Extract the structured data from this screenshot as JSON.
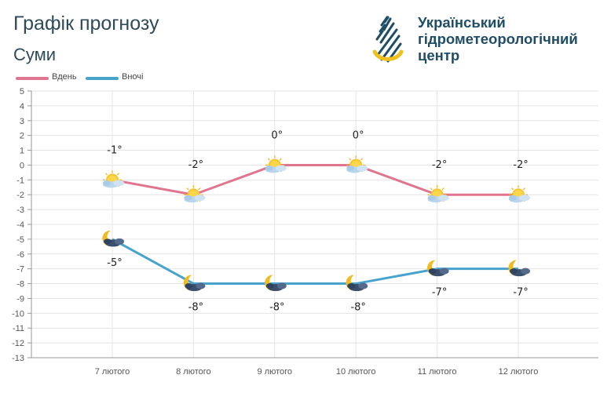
{
  "title": "Графік прогнозу",
  "city": "Суми",
  "organization": {
    "lines": [
      "Український",
      "гідрометеорологічний",
      "центр"
    ],
    "logo_icon": "droplet-logo-icon"
  },
  "legend": [
    {
      "name": "Вдень",
      "color": "#e07590"
    },
    {
      "name": "Вночі",
      "color": "#47a3cc"
    }
  ],
  "chart_data": {
    "type": "line",
    "categories": [
      "7 лютого",
      "8 лютого",
      "9 лютого",
      "10 лютого",
      "11 лютого",
      "12 лютого"
    ],
    "series": [
      {
        "name": "Вдень",
        "color": "#e07590",
        "values": [
          -1,
          -2,
          0,
          0,
          -2,
          -2
        ],
        "labels": [
          "-1°",
          "-2°",
          "0°",
          "0°",
          "-2°",
          "-2°"
        ],
        "icons": [
          "sun-cloud-icon",
          "sun-cloud-icon",
          "sun-cloud-icon",
          "sun-cloud-icon",
          "sun-cloud-icon",
          "sun-cloud-icon"
        ]
      },
      {
        "name": "Вночі",
        "color": "#47a3cc",
        "values": [
          -5,
          -8,
          -8,
          -8,
          -7,
          -7
        ],
        "labels": [
          "-5°",
          "-8°",
          "-8°",
          "-8°",
          "-7°",
          "-7°"
        ],
        "icons": [
          "moon-cloud-icon",
          "moon-cloud-icon",
          "moon-cloud-icon",
          "moon-cloud-icon",
          "moon-cloud-icon",
          "moon-cloud-icon"
        ]
      }
    ],
    "ylim": [
      -13,
      5
    ],
    "yticks": [
      "5",
      "4",
      "3",
      "2",
      "1",
      "0",
      "-1",
      "-2",
      "-3",
      "-4",
      "-5",
      "-6",
      "-7",
      "-8",
      "-9",
      "-10",
      "-11",
      "-12",
      "-13"
    ],
    "grid": true,
    "legend_position": "top-left"
  }
}
